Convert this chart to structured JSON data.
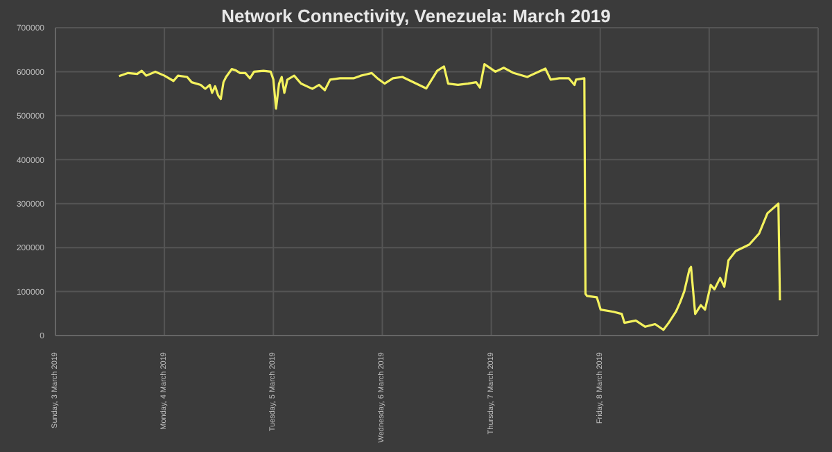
{
  "chart_data": {
    "type": "line",
    "title": "Network Connectivity, Venezuela: March 2019",
    "x": [
      "2019-03-03T14:00",
      "2019-03-03T16:00",
      "2019-03-03T18:00",
      "2019-03-03T19:00",
      "2019-03-03T20:00",
      "2019-03-03T22:00",
      "2019-03-04T00:00",
      "2019-03-04T02:00",
      "2019-03-04T03:00",
      "2019-03-04T05:00",
      "2019-03-04T06:00",
      "2019-03-04T08:00",
      "2019-03-04T09:00",
      "2019-03-04T10:00",
      "2019-03-04T10:30",
      "2019-03-04T11:10",
      "2019-03-04T11:50",
      "2019-03-04T12:25",
      "2019-03-04T13:00",
      "2019-03-04T13:35",
      "2019-03-04T14:50",
      "2019-03-04T15:45",
      "2019-03-04T16:40",
      "2019-03-04T17:50",
      "2019-03-04T18:50",
      "2019-03-04T19:45",
      "2019-03-04T21:50",
      "2019-03-04T23:25",
      "2019-03-05T00:00",
      "2019-03-05T00:35",
      "2019-03-05T01:15",
      "2019-03-05T01:50",
      "2019-03-05T02:25",
      "2019-03-05T03:05",
      "2019-03-05T04:35",
      "2019-03-05T06:05",
      "2019-03-05T08:35",
      "2019-03-05T10:05",
      "2019-03-05T11:20",
      "2019-03-05T12:30",
      "2019-03-05T14:40",
      "2019-03-05T16:10",
      "2019-03-05T17:40",
      "2019-03-05T19:15",
      "2019-03-05T20:30",
      "2019-03-05T21:40",
      "2019-03-05T22:55",
      "2019-03-06T00:30",
      "2019-03-06T02:20",
      "2019-03-06T04:25",
      "2019-03-06T09:40",
      "2019-03-06T12:05",
      "2019-03-06T13:35",
      "2019-03-06T14:30",
      "2019-03-06T16:40",
      "2019-03-06T18:50",
      "2019-03-06T20:40",
      "2019-03-06T21:30",
      "2019-03-06T22:30",
      "2019-03-07T00:55",
      "2019-03-07T02:45",
      "2019-03-07T04:55",
      "2019-03-07T07:55",
      "2019-03-07T11:55",
      "2019-03-07T13:05",
      "2019-03-07T15:00",
      "2019-03-07T17:05",
      "2019-03-07T18:20",
      "2019-03-07T18:40",
      "2019-03-07T20:30",
      "2019-03-07T20:45",
      "2019-03-07T21:05",
      "2019-03-07T23:15",
      "2019-03-08T00:05",
      "2019-03-08T02:55",
      "2019-03-08T04:45",
      "2019-03-08T05:20",
      "2019-03-08T07:50",
      "2019-03-08T09:55",
      "2019-03-08T12:05",
      "2019-03-08T13:55",
      "2019-03-08T15:05",
      "2019-03-08T16:40",
      "2019-03-08T17:35",
      "2019-03-08T18:30",
      "2019-03-08T19:40",
      "2019-03-08T20:00",
      "2019-03-08T20:55",
      "2019-03-08T22:10",
      "2019-03-08T23:05",
      "2019-03-09T00:20",
      "2019-03-09T01:10",
      "2019-03-09T02:25",
      "2019-03-09T03:20",
      "2019-03-09T04:15",
      "2019-03-09T05:50",
      "2019-03-09T08:50",
      "2019-03-09T11:00",
      "2019-03-09T12:50",
      "2019-03-09T15:15",
      "2019-03-09T15:35"
    ],
    "series": [
      {
        "color": "#f4f25e",
        "values": [
          590000,
          597000,
          595000,
          602000,
          591000,
          600000,
          591000,
          579000,
          591000,
          588000,
          576000,
          570000,
          561000,
          570000,
          552000,
          567000,
          546000,
          538000,
          576000,
          588000,
          606000,
          603000,
          597000,
          597000,
          585000,
          600000,
          602000,
          600000,
          582000,
          516000,
          573000,
          588000,
          552000,
          582000,
          591000,
          573000,
          561000,
          570000,
          558000,
          582000,
          585000,
          585000,
          585000,
          591000,
          594000,
          597000,
          585000,
          573000,
          585000,
          588000,
          562000,
          602000,
          612000,
          573000,
          570000,
          573000,
          576000,
          564000,
          617000,
          600000,
          609000,
          597000,
          588000,
          607000,
          582000,
          585000,
          585000,
          570000,
          582000,
          585000,
          95000,
          90000,
          87000,
          59000,
          54000,
          49000,
          29000,
          34000,
          20000,
          26000,
          13000,
          29000,
          54000,
          75000,
          100000,
          151000,
          156000,
          49000,
          69000,
          59000,
          115000,
          105000,
          131000,
          111000,
          171000,
          192000,
          207000,
          232000,
          278000,
          300000,
          80000
        ]
      }
    ],
    "xlim": [
      "2019-03-03",
      "2019-03-10"
    ],
    "xticks": [
      {
        "value": "2019-03-03",
        "label": "Sunday, 3 March 2019"
      },
      {
        "value": "2019-03-04",
        "label": "Monday, 4 March 2019"
      },
      {
        "value": "2019-03-05",
        "label": "Tuesday, 5 March 2019"
      },
      {
        "value": "2019-03-06",
        "label": "Wednesday, 6 March 2019"
      },
      {
        "value": "2019-03-07",
        "label": "Thursday, 7 March 2019"
      },
      {
        "value": "2019-03-08",
        "label": "Friday, 8 March 2019"
      },
      {
        "value": "2019-03-09",
        "label": null
      }
    ],
    "ylim": [
      0,
      700000
    ],
    "yticks": [
      0,
      100000,
      200000,
      300000,
      400000,
      500000,
      600000,
      700000
    ],
    "grid": true,
    "legend": false,
    "marker": "none",
    "line_style": "solid"
  }
}
